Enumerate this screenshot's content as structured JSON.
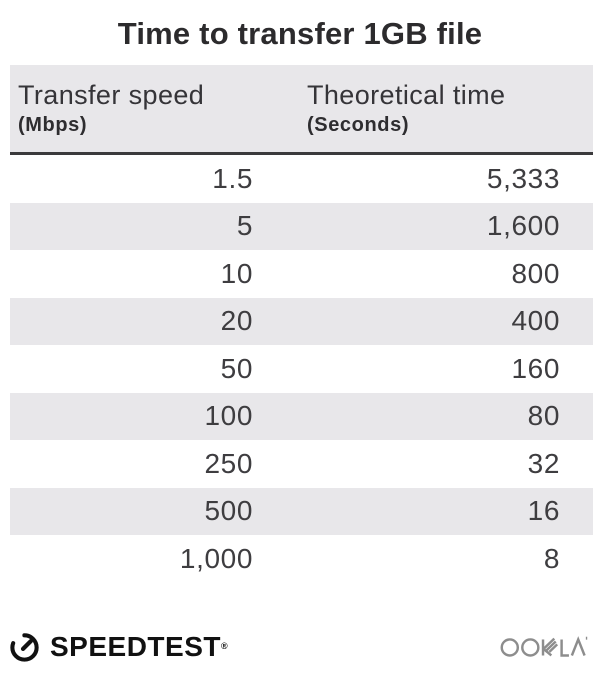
{
  "title": "Time to transfer 1GB file",
  "header": {
    "col1_label": "Transfer speed",
    "col1_unit": "(Mbps)",
    "col2_label": "Theoretical time",
    "col2_unit": "(Seconds)"
  },
  "rows": [
    {
      "speed": "1.5",
      "time": "5,333"
    },
    {
      "speed": "5",
      "time": "1,600"
    },
    {
      "speed": "10",
      "time": "800"
    },
    {
      "speed": "20",
      "time": "400"
    },
    {
      "speed": "50",
      "time": "160"
    },
    {
      "speed": "100",
      "time": "80"
    },
    {
      "speed": "250",
      "time": "32"
    },
    {
      "speed": "500",
      "time": "16"
    },
    {
      "speed": "1,000",
      "time": "8"
    }
  ],
  "footer": {
    "speedtest_label": "SPEEDTEST",
    "speedtest_trademark": "®",
    "speedtest_icon": "gauge-icon",
    "ookla_label": "OOKLA"
  },
  "colors": {
    "header_bg": "#e8e7ea",
    "row_alt_bg": "#e8e7ea",
    "divider": "#3b3a3c",
    "title_text": "#2c2b2d",
    "value_text": "#3e3d40",
    "speedtest_black": "#111111",
    "ookla_gray": "#8d8d8d"
  },
  "chart_data": {
    "type": "table",
    "title": "Time to transfer 1GB file",
    "columns": [
      "Transfer speed (Mbps)",
      "Theoretical time (Seconds)"
    ],
    "rows": [
      [
        1.5,
        5333
      ],
      [
        5,
        1600
      ],
      [
        10,
        800
      ],
      [
        20,
        400
      ],
      [
        50,
        160
      ],
      [
        100,
        80
      ],
      [
        250,
        32
      ],
      [
        500,
        16
      ],
      [
        1000,
        8
      ]
    ]
  }
}
